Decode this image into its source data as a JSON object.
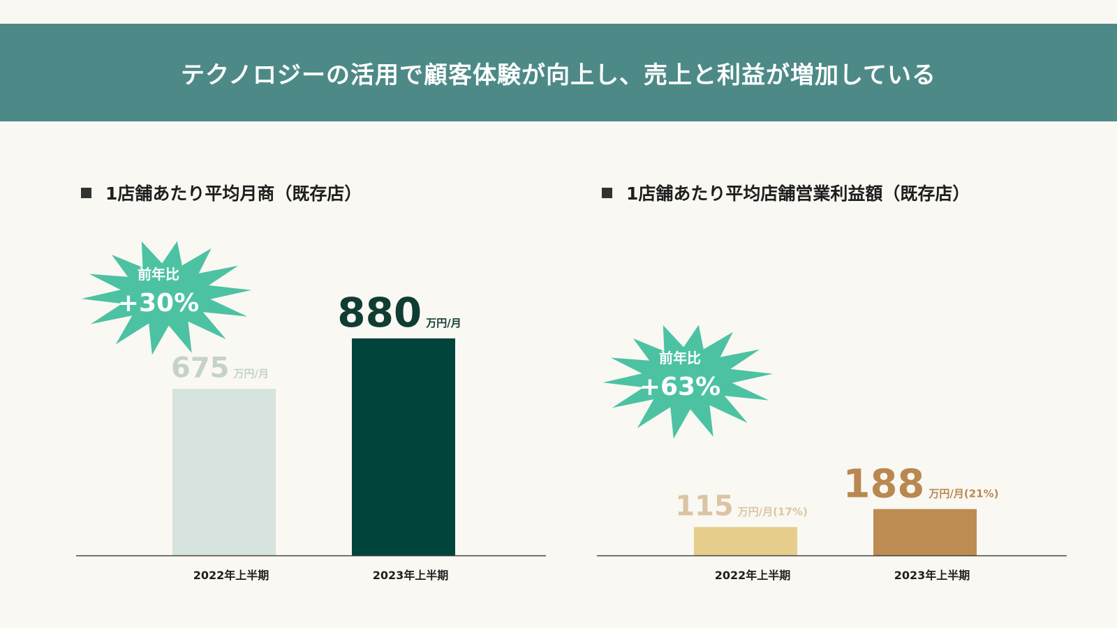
{
  "header": {
    "title": "テクノロジーの活用で顧客体験が向上し、売上と利益が増加している"
  },
  "colors": {
    "banner": "#4d8a87",
    "burst": "#4cc2a3",
    "sales_2022": "#d6e3de",
    "sales_2023": "#00443b",
    "profit_2022": "#e6cd8b",
    "profit_2023": "#bd8c52"
  },
  "chart_data": [
    {
      "type": "bar",
      "title": "1店舗あたり平均月商（既存店）",
      "categories": [
        "2022年上半期",
        "2023年上半期"
      ],
      "values": [
        675,
        880
      ],
      "value_labels": [
        "675",
        "880"
      ],
      "units": [
        "万円/月",
        "万円/月"
      ],
      "badge": {
        "label": "前年比",
        "value": "+30%"
      },
      "bar_colors": [
        "#d6e3de",
        "#00443b"
      ],
      "label_colors": [
        "#c5d2cc",
        "#103d33"
      ],
      "ylim": [
        0,
        880
      ],
      "grid": false
    },
    {
      "type": "bar",
      "title": "1店舗あたり平均店舗営業利益額（既存店）",
      "categories": [
        "2022年上半期",
        "2023年上半期"
      ],
      "values": [
        115,
        188
      ],
      "value_labels": [
        "115",
        "188"
      ],
      "units": [
        "万円/月(17%)",
        "万円/月(21%)"
      ],
      "badge": {
        "label": "前年比",
        "value": "+63%"
      },
      "bar_colors": [
        "#e6cd8b",
        "#bd8c52"
      ],
      "label_colors": [
        "#dcc4a3",
        "#b98850"
      ],
      "ylim": [
        0,
        880
      ],
      "grid": false
    }
  ]
}
